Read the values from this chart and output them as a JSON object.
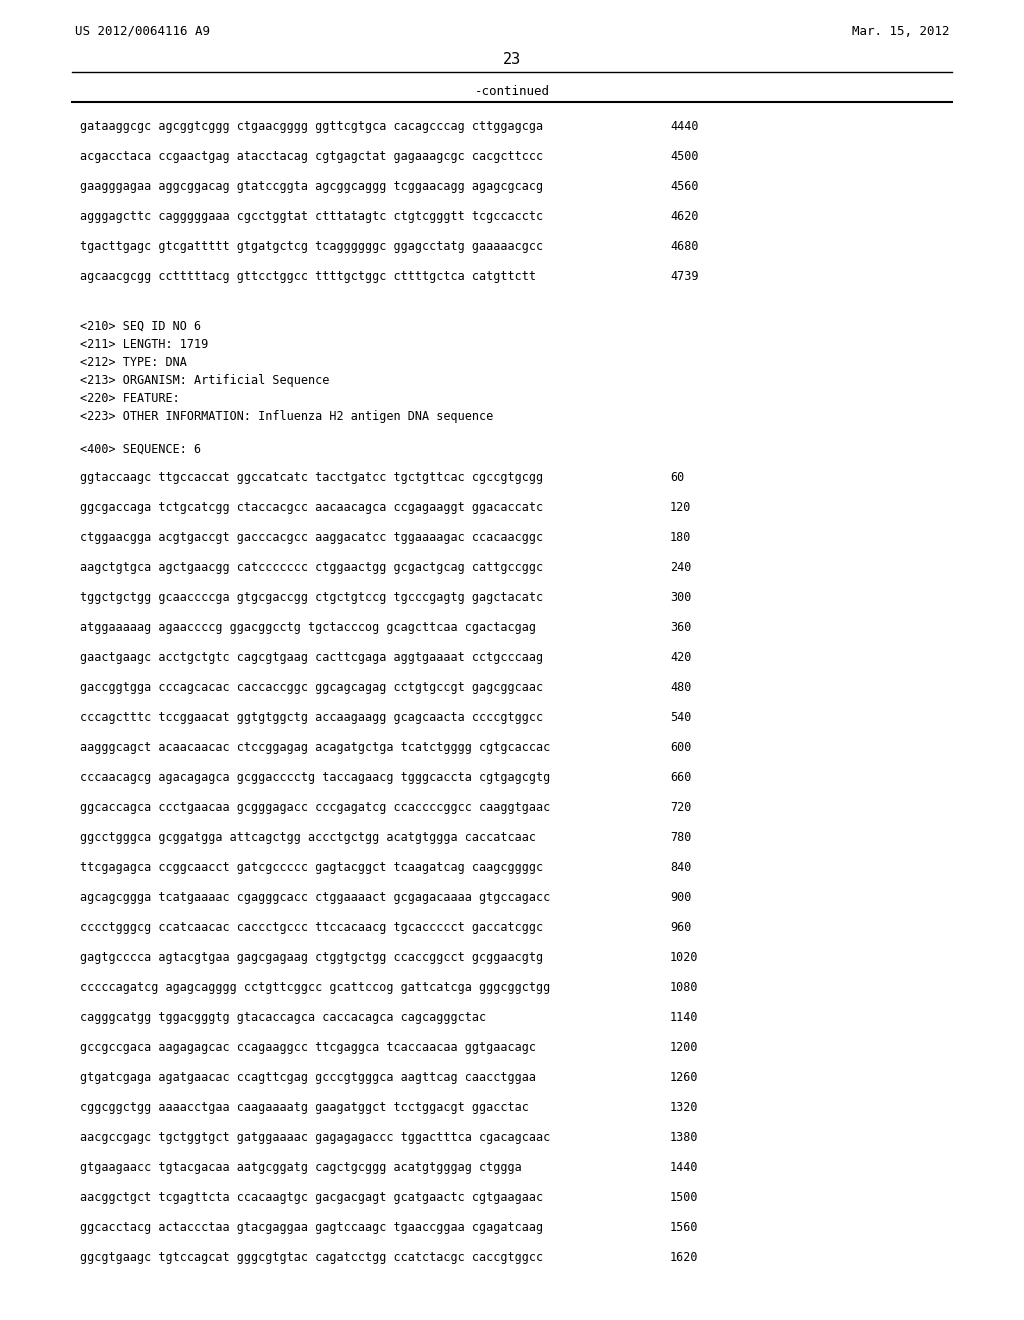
{
  "background_color": "#ffffff",
  "page_number": "23",
  "header_left": "US 2012/0064116 A9",
  "header_right": "Mar. 15, 2012",
  "continued_label": "-continued",
  "top_lines": [
    {
      "seq": "gataaggcgc agcggtcggg ctgaacgggg ggttcgtgca cacagcccag cttggagcga",
      "num": "4440"
    },
    {
      "seq": "acgacctaca ccgaactgag atacctacag cgtgagctat gagaaagcgc cacgcttccc",
      "num": "4500"
    },
    {
      "seq": "gaagggagaa aggcggacag gtatccggta agcggcaggg tcggaacagg agagcgcacg",
      "num": "4560"
    },
    {
      "seq": "agggagcttc cagggggaaa cgcctggtat ctttatagtc ctgtcgggtt tcgccacctc",
      "num": "4620"
    },
    {
      "seq": "tgacttgagc gtcgattttt gtgatgctcg tcaggggggc ggagcctatg gaaaaacgcc",
      "num": "4680"
    },
    {
      "seq": "agcaacgcgg cctttttacg gttcctggcc ttttgctggc cttttgctca catgttctt",
      "num": "4739"
    }
  ],
  "metadata_lines": [
    "<210> SEQ ID NO 6",
    "<211> LENGTH: 1719",
    "<212> TYPE: DNA",
    "<213> ORGANISM: Artificial Sequence",
    "<220> FEATURE:",
    "<223> OTHER INFORMATION: Influenza H2 antigen DNA sequence"
  ],
  "sequence_header": "<400> SEQUENCE: 6",
  "seq_lines": [
    {
      "seq": "ggtaccaagc ttgccaccat ggccatcatc tacctgatcc tgctgttcac cgccgtgcgg",
      "num": "60"
    },
    {
      "seq": "ggcgaccaga tctgcatcgg ctaccacgcc aacaacagca ccgagaaggt ggacaccatc",
      "num": "120"
    },
    {
      "seq": "ctggaacgga acgtgaccgt gacccacgcc aaggacatcc tggaaaagac ccacaacggc",
      "num": "180"
    },
    {
      "seq": "aagctgtgca agctgaacgg catccccccс ctggaactgg gcgactgcag cattgccggc",
      "num": "240"
    },
    {
      "seq": "tggctgctgg gcaaccccga gtgcgaccgg ctgctgtccg tgcccgagtg gagctacatc",
      "num": "300"
    },
    {
      "seq": "atggaaaaag agaaccccg ggacggcctg tgctacccog gcagcttcaa cgactacgag",
      "num": "360"
    },
    {
      "seq": "gaactgaagc acctgctgtc cagcgtgaag cacttcgaga aggtgaaaat cctgcccaag",
      "num": "420"
    },
    {
      "seq": "gaccggtgga cccagcacac caccaccggc ggcagcagag cctgtgccgt gagcggcaac",
      "num": "480"
    },
    {
      "seq": "cccagctttc tccggaacat ggtgtggctg accaagaagg gcagcaacta ccccgtggcc",
      "num": "540"
    },
    {
      "seq": "aagggcagct acaacaacac ctccggagag acagatgctga tcatctgggg cgtgcaccac",
      "num": "600"
    },
    {
      "seq": "cccaacagcg agacagagca gcggacccctg taccagaacg tgggcaccta cgtgagcgtg",
      "num": "660"
    },
    {
      "seq": "ggcaccagca ccctgaacaa gcgggagacc cccgagatcg ccaccccggcc caaggtgaac",
      "num": "720"
    },
    {
      "seq": "ggcctgggca gcggatgga attcagctgg accctgctgg acatgtggga caccatcaac",
      "num": "780"
    },
    {
      "seq": "ttcgagagca ccggcaacct gatcgccccc gagtacggct tcaagatcag caagcggggc",
      "num": "840"
    },
    {
      "seq": "agcagcggga tcatgaaaac cgagggcacc ctggaaaact gcgagacaaaa gtgccagacc",
      "num": "900"
    },
    {
      "seq": "cccctgggcg ccatcaacac caccctgccc ttccacaacg tgcaccccct gaccatcggc",
      "num": "960"
    },
    {
      "seq": "gagtgcccca agtacgtgaa gagcgagaag ctggtgctgg ccaccggcct gcggaacgtg",
      "num": "1020"
    },
    {
      "seq": "cccccagatcg agagcagggg cctgttcggcc gcattccog gattcatcga gggcggctgg",
      "num": "1080"
    },
    {
      "seq": "cagggcatgg tggacgggtg gtacaccagca caccacagca cagcagggctac",
      "num": "1140"
    },
    {
      "seq": "gccgccgaca aagagagcac ccagaaggcc ttcgaggca tcaccaacaa ggtgaacagc",
      "num": "1200"
    },
    {
      "seq": "gtgatcgaga agatgaacac ccagttcgag gcccgtgggca aagttcag caacctggaa",
      "num": "1260"
    },
    {
      "seq": "cggcggctgg aaaacctgaa caagaaaatg gaagatggct tcctggacgt ggacctac",
      "num": "1320"
    },
    {
      "seq": "aacgccgagc tgctggtgct gatggaaaac gagagagaccc tggactttca cgacagcaac",
      "num": "1380"
    },
    {
      "seq": "gtgaagaacc tgtacgacaa aatgcggatg cagctgcggg acatgtgggag ctggga",
      "num": "1440"
    },
    {
      "seq": "aacggctgct tcgagttcta ccacaagtgc gacgacgagt gcatgaactc cgtgaagaac",
      "num": "1500"
    },
    {
      "seq": "ggcacctacg actaccctaa gtacgaggaa gagtccaagc tgaaccggaa cgagatcaag",
      "num": "1560"
    },
    {
      "seq": "ggcgtgaagc tgtccagcat gggcgtgtac cagatcctgg ccatctacgc caccgtggcc",
      "num": "1620"
    }
  ]
}
